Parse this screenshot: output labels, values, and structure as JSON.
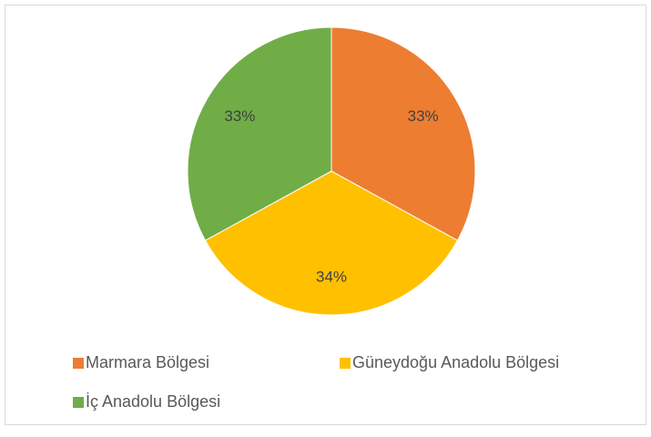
{
  "chart_data": {
    "type": "pie",
    "categories": [
      "Marmara Bölgesi",
      "Güneydoğu Anadolu Bölgesi",
      "İç Anadolu Bölgesi"
    ],
    "values": [
      33,
      34,
      33
    ],
    "value_labels": [
      "33%",
      "34%",
      "33%"
    ],
    "colors": [
      "#ed7d31",
      "#ffc000",
      "#70ad47"
    ],
    "legend": "bottom"
  }
}
